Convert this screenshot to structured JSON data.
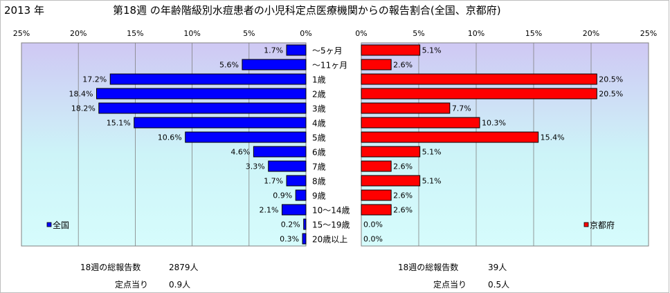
{
  "header": {
    "year": "2013 年",
    "title": "第18週 の年齢階級別水痘患者の小児科定点医療機関からの報告割合(全国、京都府)"
  },
  "chart_data": {
    "type": "bar",
    "categories": [
      "～5ヶ月",
      "～11ヶ月",
      "1歳",
      "2歳",
      "3歳",
      "4歳",
      "5歳",
      "6歳",
      "7歳",
      "8歳",
      "9歳",
      "10～14歳",
      "15～19歳",
      "20歳以上"
    ],
    "xlim": [
      0,
      25
    ],
    "ticks": [
      "25%",
      "20%",
      "15%",
      "10%",
      "5%",
      "0%",
      "0%",
      "5%",
      "10%",
      "15%",
      "20%",
      "25%"
    ],
    "series": [
      {
        "name": "全国",
        "color": "#0000ff",
        "values": [
          1.7,
          5.6,
          17.2,
          18.4,
          18.2,
          15.1,
          10.6,
          4.6,
          3.3,
          1.7,
          0.9,
          2.1,
          0.2,
          0.3
        ],
        "labels": [
          "1.7%",
          "5.6%",
          "17.2%",
          "18.4%",
          "18.2%",
          "15.1%",
          "10.6%",
          "4.6%",
          "3.3%",
          "1.7%",
          "0.9%",
          "2.1%",
          "0.2%",
          "0.3%"
        ]
      },
      {
        "name": "京都府",
        "color": "#ff0000",
        "values": [
          5.1,
          2.6,
          20.5,
          20.5,
          7.7,
          10.3,
          15.4,
          5.1,
          2.6,
          5.1,
          2.6,
          2.6,
          0.0,
          0.0
        ],
        "labels": [
          "5.1%",
          "2.6%",
          "20.5%",
          "20.5%",
          "7.7%",
          "10.3%",
          "15.4%",
          "5.1%",
          "2.6%",
          "5.1%",
          "2.6%",
          "2.6%",
          "0.0%",
          "0.0%"
        ]
      }
    ],
    "grid": true
  },
  "stats": {
    "left": {
      "total_label": "18週の総報告数",
      "total_value": "2879人",
      "per_label": "定点当り",
      "per_value": "0.9人"
    },
    "right": {
      "total_label": "18週の総報告数",
      "total_value": "39人",
      "per_label": "定点当り",
      "per_value": "0.5人"
    }
  }
}
